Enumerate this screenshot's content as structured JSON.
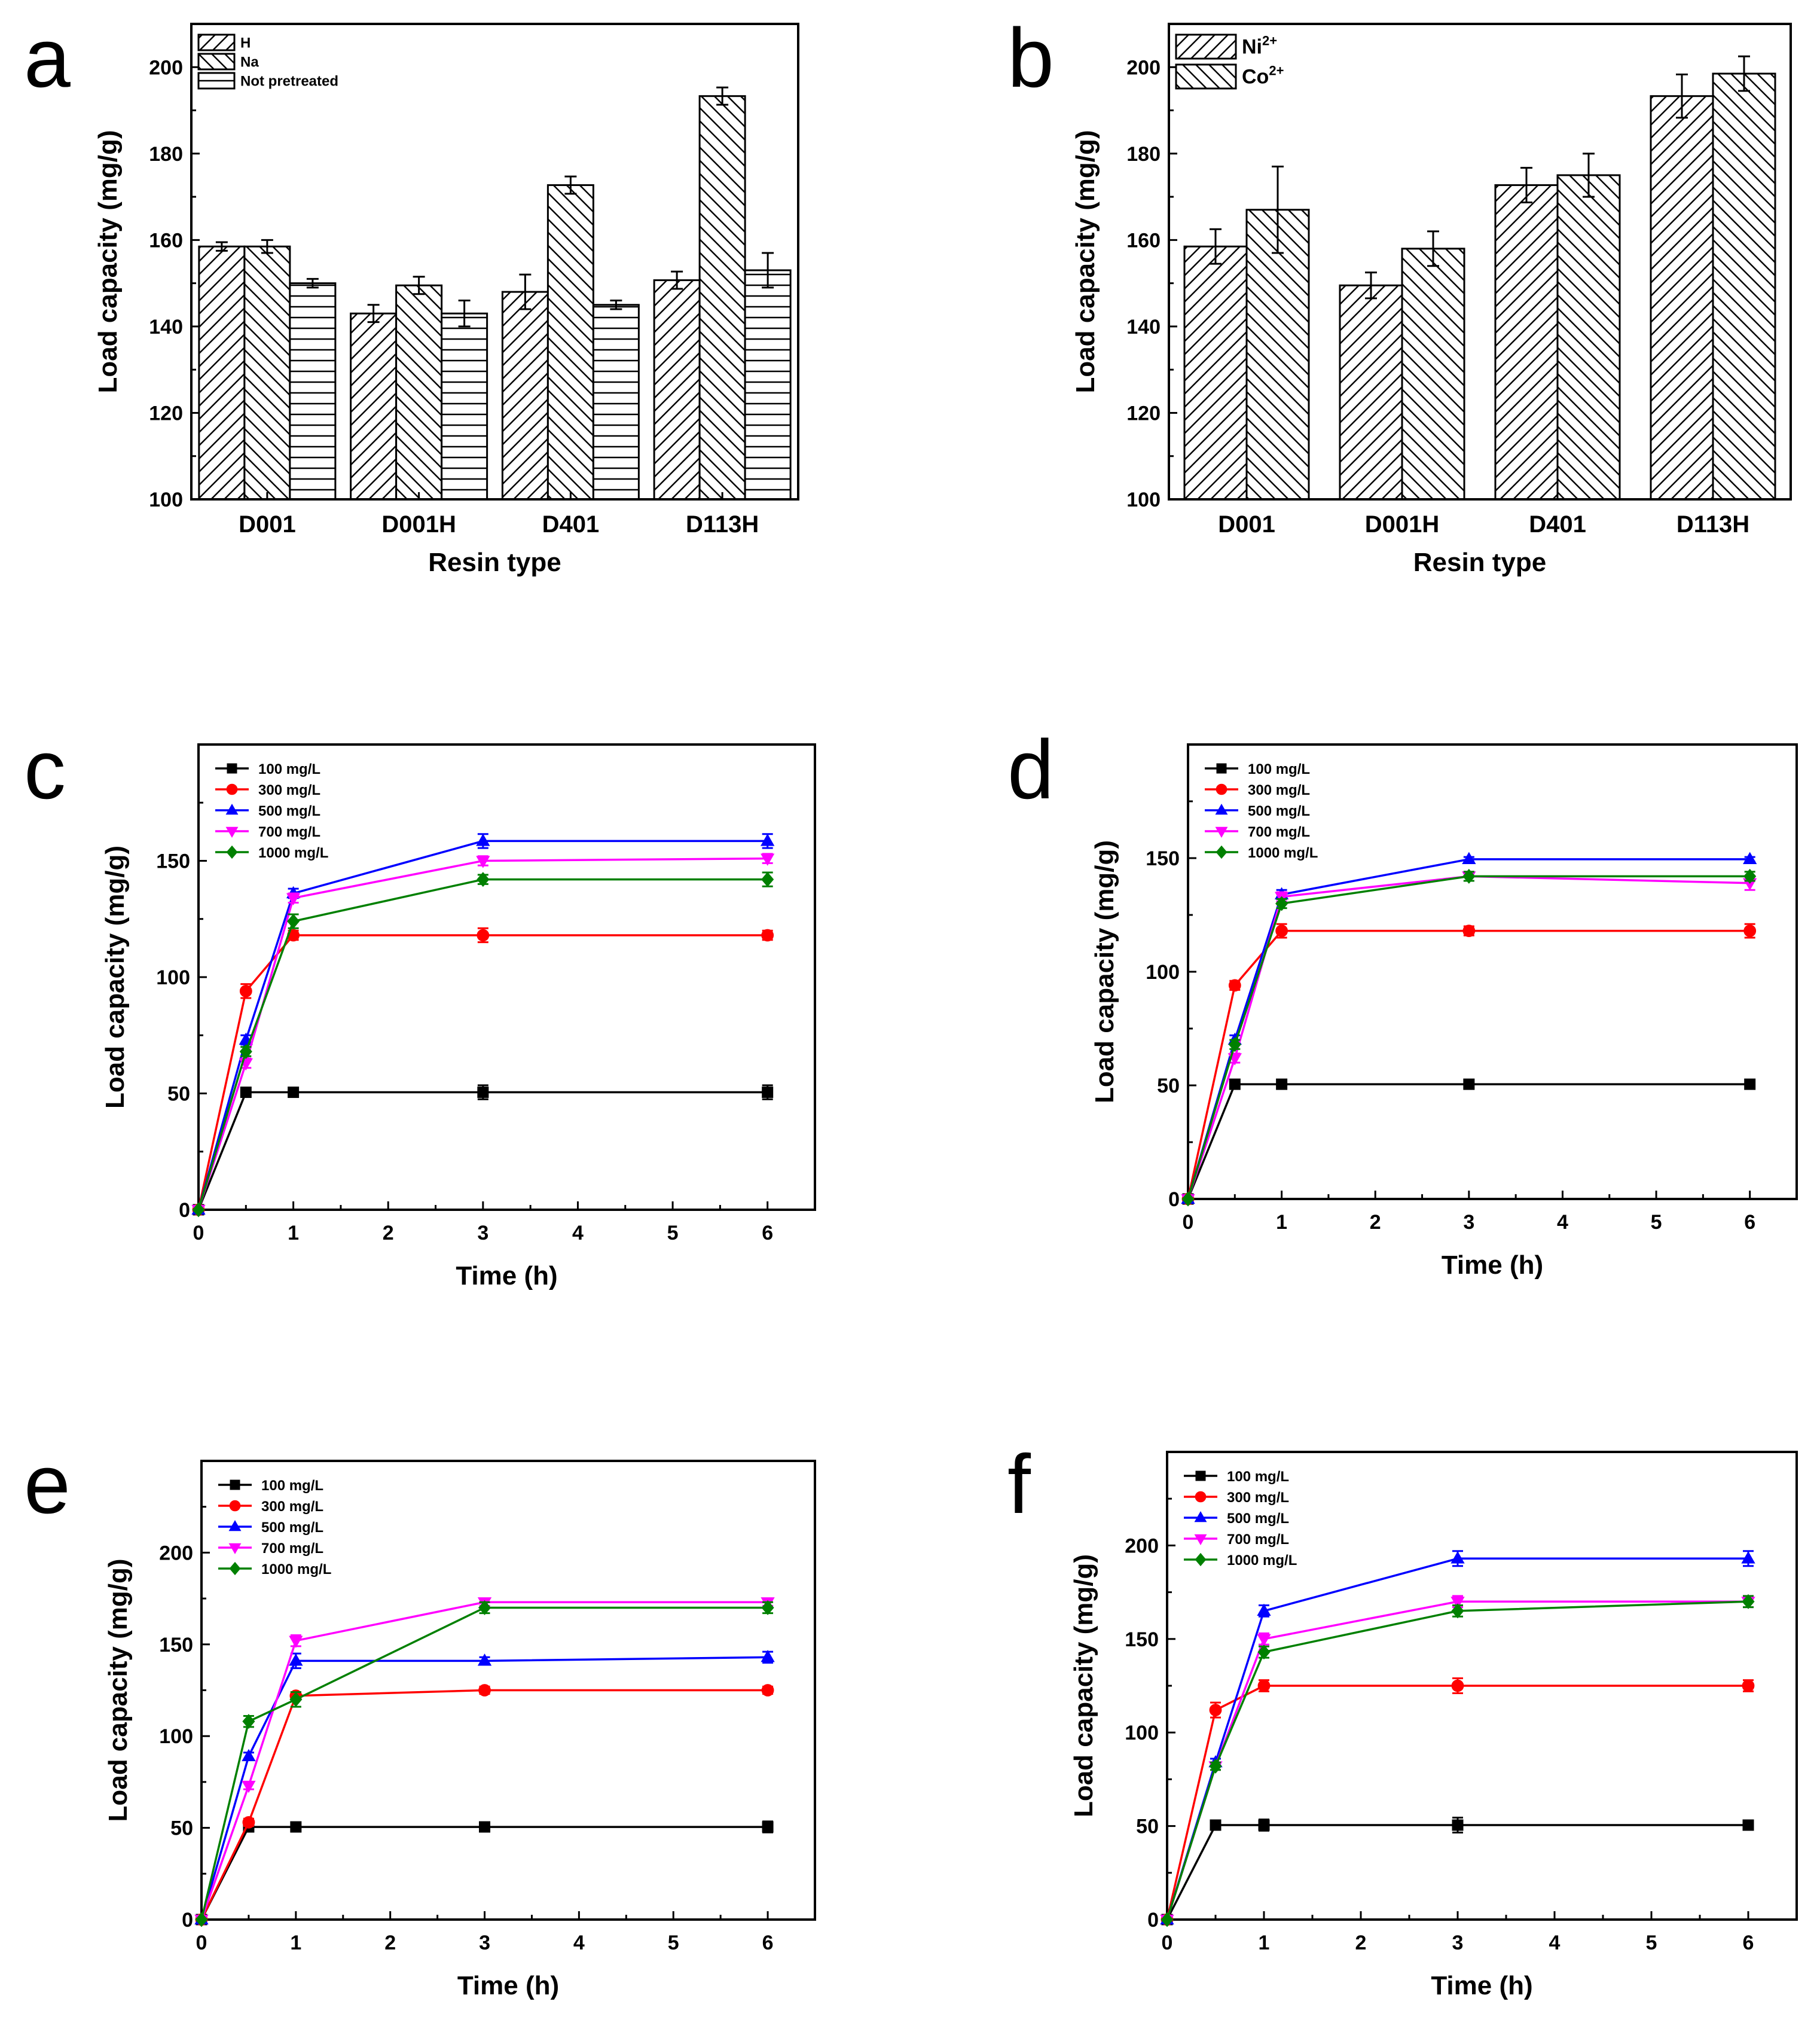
{
  "chart_data": [
    {
      "id": "a",
      "type": "bar",
      "panel_label": "a",
      "xlabel": "Resin type",
      "ylabel": "Load capacity (mg/g)",
      "ylim": [
        100,
        210
      ],
      "yticks": [
        100,
        120,
        140,
        160,
        180,
        200
      ],
      "categories": [
        "D001",
        "D001H",
        "D401",
        "D113H"
      ],
      "legend_position": "top-left",
      "series": [
        {
          "name": "H",
          "pattern": "diag-up",
          "values": [
            158.5,
            143,
            148,
            150.7
          ],
          "errors": [
            1,
            2,
            4,
            2
          ]
        },
        {
          "name": "Na",
          "pattern": "diag-down",
          "values": [
            158.5,
            149.5,
            172.7,
            193.3
          ],
          "errors": [
            1.5,
            2,
            2,
            2
          ]
        },
        {
          "name": "Not pretreated",
          "pattern": "horizontal",
          "values": [
            150,
            143,
            145,
            153
          ],
          "errors": [
            1,
            3,
            1,
            4
          ]
        }
      ]
    },
    {
      "id": "b",
      "type": "bar",
      "panel_label": "b",
      "xlabel": "Resin type",
      "ylabel": "Load capacity (mg/g)",
      "ylim": [
        100,
        210
      ],
      "yticks": [
        100,
        120,
        140,
        160,
        180,
        200
      ],
      "categories": [
        "D001",
        "D001H",
        "D401",
        "D113H"
      ],
      "legend_position": "top-left",
      "series": [
        {
          "name": "Ni",
          "superscript": "2+",
          "pattern": "diag-up",
          "values": [
            158.5,
            149.5,
            172.7,
            193.3
          ],
          "errors": [
            4,
            3,
            4,
            5
          ]
        },
        {
          "name": "Co",
          "superscript": "2+",
          "pattern": "diag-down",
          "values": [
            167,
            158,
            175,
            198.5
          ],
          "errors": [
            10,
            4,
            5,
            4
          ]
        }
      ]
    },
    {
      "id": "c",
      "type": "line",
      "panel_label": "c",
      "xlabel": "Time (h)",
      "ylabel": "Load capacity (mg/g)",
      "xlim": [
        0,
        6.5
      ],
      "ylim": [
        0,
        200
      ],
      "xticks": [
        0,
        1,
        2,
        3,
        4,
        5,
        6
      ],
      "yticks": [
        0,
        50,
        100,
        150
      ],
      "x": [
        0,
        0.5,
        1,
        3,
        6
      ],
      "legend_position": "top-left",
      "series": [
        {
          "name": "100 mg/L",
          "color": "#000000",
          "marker": "square",
          "values": [
            0,
            50.5,
            50.5,
            50.5,
            50.5
          ],
          "errors": [
            0,
            1,
            1,
            3,
            3
          ]
        },
        {
          "name": "300 mg/L",
          "color": "#ff0000",
          "marker": "circle",
          "values": [
            0,
            94,
            118,
            118,
            118
          ],
          "errors": [
            0,
            3,
            2,
            3,
            2
          ]
        },
        {
          "name": "500 mg/L",
          "color": "#0000ff",
          "marker": "triangle-up",
          "values": [
            0,
            73,
            136,
            158.5,
            158.5
          ],
          "errors": [
            0,
            2,
            2,
            3,
            3
          ]
        },
        {
          "name": "700 mg/L",
          "color": "#ff00ff",
          "marker": "triangle-down",
          "values": [
            0,
            63,
            134,
            150,
            151
          ],
          "errors": [
            0,
            2,
            2,
            2,
            2
          ]
        },
        {
          "name": "1000 mg/L",
          "color": "#008000",
          "marker": "diamond",
          "values": [
            0,
            68,
            124,
            142,
            142
          ],
          "errors": [
            0,
            2,
            3,
            2,
            3
          ]
        }
      ]
    },
    {
      "id": "d",
      "type": "line",
      "panel_label": "d",
      "xlabel": "Time (h)",
      "ylabel": "Load capacity (mg/g)",
      "xlim": [
        0,
        6.5
      ],
      "ylim": [
        0,
        200
      ],
      "xticks": [
        0,
        1,
        2,
        3,
        4,
        5,
        6
      ],
      "yticks": [
        0,
        50,
        100,
        150
      ],
      "x": [
        0,
        0.5,
        1,
        3,
        6
      ],
      "legend_position": "top-left",
      "series": [
        {
          "name": "100 mg/L",
          "color": "#000000",
          "marker": "square",
          "values": [
            0,
            50.5,
            50.5,
            50.5,
            50.5
          ],
          "errors": [
            0,
            1,
            1,
            1,
            1
          ]
        },
        {
          "name": "300 mg/L",
          "color": "#ff0000",
          "marker": "circle",
          "values": [
            0,
            94,
            118,
            118,
            118
          ],
          "errors": [
            0,
            2,
            3,
            2,
            3
          ]
        },
        {
          "name": "500 mg/L",
          "color": "#0000ff",
          "marker": "triangle-up",
          "values": [
            0,
            70,
            134,
            149.5,
            149.5
          ],
          "errors": [
            0,
            2,
            2,
            1,
            1
          ]
        },
        {
          "name": "700 mg/L",
          "color": "#ff00ff",
          "marker": "triangle-down",
          "values": [
            0,
            62,
            133,
            142,
            139
          ],
          "errors": [
            0,
            2,
            2,
            2,
            3
          ]
        },
        {
          "name": "1000 mg/L",
          "color": "#008000",
          "marker": "diamond",
          "values": [
            0,
            68,
            130,
            142,
            142
          ],
          "errors": [
            0,
            2,
            2,
            2,
            2
          ]
        }
      ]
    },
    {
      "id": "e",
      "type": "line",
      "panel_label": "e",
      "xlabel": "Time (h)",
      "ylabel": "Load capacity (mg/g)",
      "xlim": [
        0,
        6.5
      ],
      "ylim": [
        0,
        250
      ],
      "xticks": [
        0,
        1,
        2,
        3,
        4,
        5,
        6
      ],
      "yticks": [
        0,
        50,
        100,
        150,
        200
      ],
      "x": [
        0,
        0.5,
        1,
        3,
        6
      ],
      "legend_position": "top-left",
      "series": [
        {
          "name": "100 mg/L",
          "color": "#000000",
          "marker": "square",
          "values": [
            0,
            50.5,
            50.5,
            50.5,
            50.5
          ],
          "errors": [
            0,
            1,
            1,
            1,
            3
          ]
        },
        {
          "name": "300 mg/L",
          "color": "#ff0000",
          "marker": "circle",
          "values": [
            0,
            53,
            122,
            125,
            125
          ],
          "errors": [
            0,
            2,
            2,
            2,
            2
          ]
        },
        {
          "name": "500 mg/L",
          "color": "#0000ff",
          "marker": "triangle-up",
          "values": [
            0,
            89,
            141,
            141,
            143
          ],
          "errors": [
            0,
            2,
            4,
            2,
            3
          ]
        },
        {
          "name": "700 mg/L",
          "color": "#ff00ff",
          "marker": "triangle-down",
          "values": [
            0,
            73,
            152,
            173,
            173
          ],
          "errors": [
            0,
            2,
            3,
            2,
            2
          ]
        },
        {
          "name": "1000 mg/L",
          "color": "#008000",
          "marker": "diamond",
          "values": [
            0,
            108,
            120,
            170,
            170
          ],
          "errors": [
            0,
            3,
            4,
            3,
            3
          ]
        }
      ]
    },
    {
      "id": "f",
      "type": "line",
      "panel_label": "f",
      "xlabel": "Time (h)",
      "ylabel": "Load capacity (mg/g)",
      "xlim": [
        0,
        6.5
      ],
      "ylim": [
        0,
        250
      ],
      "xticks": [
        0,
        1,
        2,
        3,
        4,
        5,
        6
      ],
      "yticks": [
        0,
        50,
        100,
        150,
        200
      ],
      "x": [
        0,
        0.5,
        1,
        3,
        6
      ],
      "legend_position": "top-left",
      "series": [
        {
          "name": "100 mg/L",
          "color": "#000000",
          "marker": "square",
          "values": [
            0,
            50.5,
            50.5,
            50.5,
            50.5
          ],
          "errors": [
            0,
            1,
            3,
            4,
            2
          ]
        },
        {
          "name": "300 mg/L",
          "color": "#ff0000",
          "marker": "circle",
          "values": [
            0,
            112,
            125,
            125,
            125
          ],
          "errors": [
            0,
            4,
            3,
            4,
            3
          ]
        },
        {
          "name": "500 mg/L",
          "color": "#0000ff",
          "marker": "triangle-up",
          "values": [
            0,
            84,
            165,
            193,
            193
          ],
          "errors": [
            0,
            2,
            3,
            4,
            4
          ]
        },
        {
          "name": "700 mg/L",
          "color": "#ff00ff",
          "marker": "triangle-down",
          "values": [
            0,
            82,
            150,
            170,
            170
          ],
          "errors": [
            0,
            2,
            3,
            3,
            3
          ]
        },
        {
          "name": "1000 mg/L",
          "color": "#008000",
          "marker": "diamond",
          "values": [
            0,
            82,
            143,
            165,
            170
          ],
          "errors": [
            0,
            2,
            3,
            3,
            3
          ]
        }
      ]
    }
  ]
}
